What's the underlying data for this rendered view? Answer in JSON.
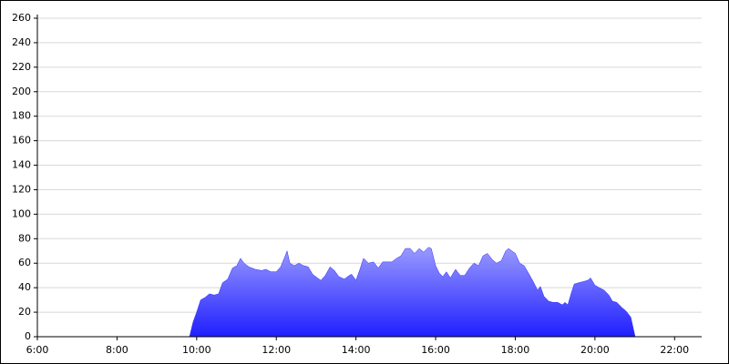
{
  "chart_data": {
    "type": "area",
    "color": "#2a2aff",
    "grid": true,
    "xlim": [
      6,
      22.68
    ],
    "ylim": [
      0,
      260
    ],
    "xticks": [
      {
        "value": 6,
        "label": "6:00"
      },
      {
        "value": 8,
        "label": "8:00"
      },
      {
        "value": 10,
        "label": "10:00"
      },
      {
        "value": 12,
        "label": "12:00"
      },
      {
        "value": 14,
        "label": "14:00"
      },
      {
        "value": 16,
        "label": "16:00"
      },
      {
        "value": 18,
        "label": "18:00"
      },
      {
        "value": 20,
        "label": "20:00"
      },
      {
        "value": 22,
        "label": "22:00"
      }
    ],
    "yticks": [
      0,
      20,
      40,
      60,
      80,
      100,
      120,
      140,
      160,
      180,
      200,
      220,
      240,
      260
    ],
    "x": [
      9.82,
      9.91,
      10.0,
      10.1,
      10.21,
      10.32,
      10.44,
      10.55,
      10.65,
      10.78,
      10.9,
      11.01,
      11.1,
      11.19,
      11.31,
      11.47,
      11.63,
      11.74,
      11.86,
      12.0,
      12.11,
      12.2,
      12.27,
      12.34,
      12.45,
      12.57,
      12.68,
      12.8,
      12.91,
      13.03,
      13.12,
      13.23,
      13.35,
      13.46,
      13.57,
      13.71,
      13.83,
      13.89,
      14.0,
      14.1,
      14.19,
      14.31,
      14.44,
      14.56,
      14.67,
      14.79,
      14.9,
      15.02,
      15.13,
      15.24,
      15.36,
      15.47,
      15.59,
      15.7,
      15.82,
      15.89,
      16.0,
      16.09,
      16.18,
      16.27,
      16.37,
      16.5,
      16.62,
      16.73,
      16.85,
      16.96,
      17.08,
      17.19,
      17.3,
      17.42,
      17.53,
      17.65,
      17.76,
      17.83,
      18.0,
      18.11,
      18.22,
      18.33,
      18.45,
      18.56,
      18.63,
      18.72,
      18.84,
      18.95,
      19.07,
      19.18,
      19.25,
      19.32,
      19.41,
      19.48,
      19.59,
      19.71,
      19.82,
      19.89,
      20.0,
      20.11,
      20.23,
      20.35,
      20.44,
      20.55,
      20.67,
      20.78,
      20.9,
      21.01
    ],
    "values": [
      0,
      12,
      20,
      30,
      32,
      35,
      34,
      35,
      44,
      47,
      56,
      58,
      64,
      60,
      57,
      55,
      54,
      55,
      53,
      53,
      57,
      64,
      70,
      60,
      58,
      60,
      58,
      57,
      51,
      48,
      46,
      50,
      57,
      54,
      49,
      47,
      50,
      51,
      46,
      55,
      64,
      60,
      61,
      56,
      61,
      61,
      61,
      64,
      66,
      72,
      72,
      68,
      72,
      69,
      73,
      72,
      58,
      52,
      49,
      53,
      48,
      55,
      50,
      50,
      56,
      60,
      58,
      66,
      68,
      63,
      60,
      62,
      70,
      72,
      68,
      60,
      58,
      52,
      45,
      38,
      41,
      33,
      29,
      28,
      28,
      26,
      28,
      26,
      36,
      43,
      44,
      45,
      46,
      48,
      42,
      40,
      38,
      34,
      29,
      28,
      24,
      21,
      16,
      0
    ]
  }
}
